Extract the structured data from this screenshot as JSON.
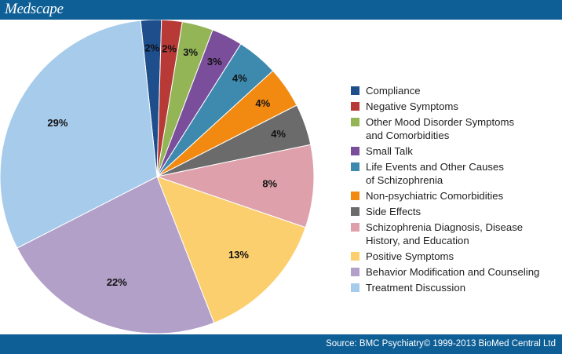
{
  "header": {
    "brand": "Medscape"
  },
  "footer": {
    "source": "Source: BMC Psychiatry© 1999-2013 BioMed Central Ltd"
  },
  "chart_data": {
    "type": "pie",
    "start_angle_deg": -6,
    "direction": "clockwise",
    "slices": [
      {
        "label": "Compliance",
        "value": 2,
        "display": "2%",
        "color": "#1f4e8c"
      },
      {
        "label": "Negative Symptoms",
        "value": 2,
        "display": "2%",
        "color": "#b83a36"
      },
      {
        "label": "Other Mood Disorder Symptoms\nand Comorbidities",
        "value": 3,
        "display": "3%",
        "color": "#93b556"
      },
      {
        "label": "Small Talk",
        "value": 3,
        "display": "3%",
        "color": "#7a4e9a"
      },
      {
        "label": "Life Events and Other Causes\nof Schizophrenia",
        "value": 4,
        "display": "4%",
        "color": "#3e8aaf"
      },
      {
        "label": "Non-psychiatric Comorbidities",
        "value": 4,
        "display": "4%",
        "color": "#f28a12"
      },
      {
        "label": "Side Effects",
        "value": 4,
        "display": "4%",
        "color": "#6b6b6b"
      },
      {
        "label": "Schizophrenia Diagnosis, Disease\nHistory, and Education",
        "value": 8,
        "display": "8%",
        "color": "#dea1ac"
      },
      {
        "label": "Positive Symptoms",
        "value": 13,
        "display": "13%",
        "color": "#fccf6e"
      },
      {
        "label": "Behavior Modification and Counseling",
        "value": 22,
        "display": "22%",
        "color": "#b2a0c9"
      },
      {
        "label": "Treatment Discussion",
        "value": 29,
        "display": "29%",
        "color": "#a7cbeb"
      }
    ],
    "legend_position": "right"
  }
}
